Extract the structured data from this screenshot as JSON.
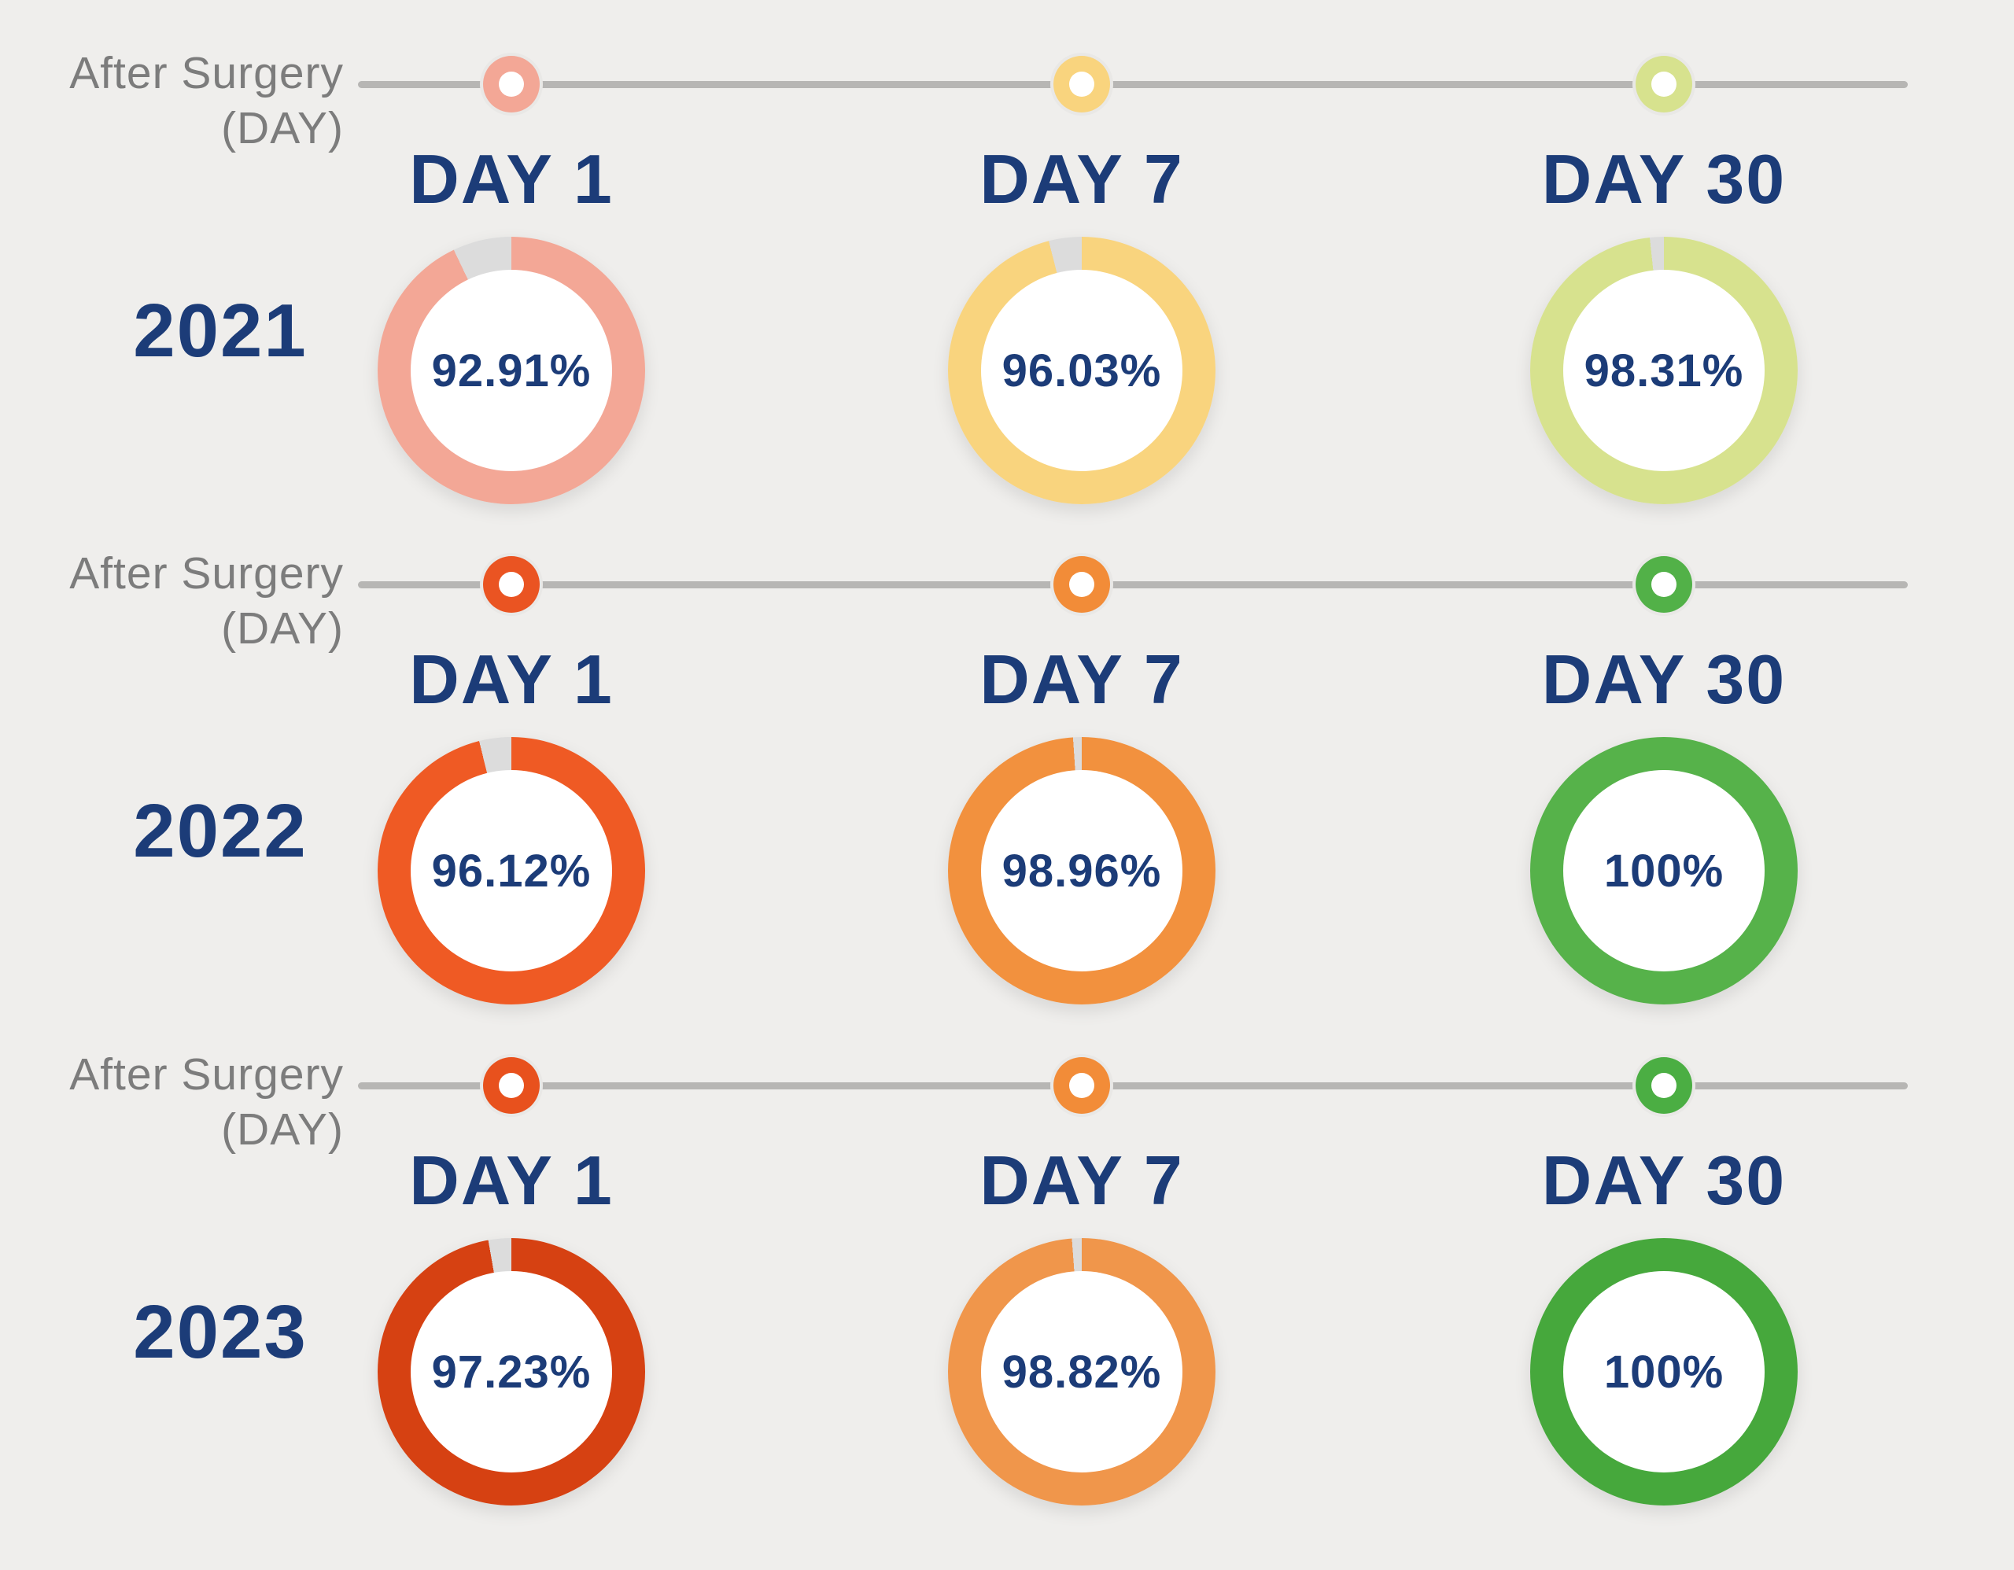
{
  "page": {
    "background": "#efeeec"
  },
  "colors": {
    "navy_text": "#1c3c78",
    "gray_text": "#7c7c7c",
    "timeline_track": "#b7b6b4",
    "donut_remainder": "#dcdcdc",
    "marker_halo": "#e9e8e6"
  },
  "axis_label": {
    "line1": "After Surgery",
    "line2": "(DAY)"
  },
  "rows": [
    {
      "year": "2021",
      "cells": [
        {
          "day_label": "DAY 1",
          "value": "92.91%",
          "color": "#f3a796",
          "marker_color": "#f3a796"
        },
        {
          "day_label": "DAY 7",
          "value": "96.03%",
          "color": "#f9d47e",
          "marker_color": "#f9d47e"
        },
        {
          "day_label": "DAY 30",
          "value": "98.31%",
          "color": "#d7e28e",
          "marker_color": "#d7e28e"
        }
      ]
    },
    {
      "year": "2022",
      "cells": [
        {
          "day_label": "DAY 1",
          "value": "96.12%",
          "color": "#ef5a24",
          "marker_color": "#ea5422"
        },
        {
          "day_label": "DAY 7",
          "value": "98.96%",
          "color": "#f2913e",
          "marker_color": "#f28c38"
        },
        {
          "day_label": "DAY 30",
          "value": "100%",
          "color": "#56b24a",
          "marker_color": "#52b148"
        }
      ]
    },
    {
      "year": "2023",
      "cells": [
        {
          "day_label": "DAY 1",
          "value": "97.23%",
          "color": "#d64112",
          "marker_color": "#e8511d"
        },
        {
          "day_label": "DAY 7",
          "value": "98.82%",
          "color": "#f0964b",
          "marker_color": "#f28c38"
        },
        {
          "day_label": "DAY 30",
          "value": "100%",
          "color": "#46a83c",
          "marker_color": "#4bae43"
        }
      ]
    }
  ],
  "chart_data": {
    "type": "pie",
    "subtype": "donut-grid",
    "title": "",
    "axis_label": "After Surgery (DAY)",
    "x_categories": [
      "DAY 1",
      "DAY 7",
      "DAY 30"
    ],
    "row_categories": [
      "2021",
      "2022",
      "2023"
    ],
    "series": [
      {
        "name": "2021",
        "values": [
          92.91,
          96.03,
          98.31
        ]
      },
      {
        "name": "2022",
        "values": [
          96.12,
          98.96,
          100
        ]
      },
      {
        "name": "2023",
        "values": [
          97.23,
          98.82,
          100
        ]
      }
    ],
    "value_unit": "%",
    "value_range": [
      0,
      100
    ],
    "legend_position": "none",
    "grid": false
  }
}
